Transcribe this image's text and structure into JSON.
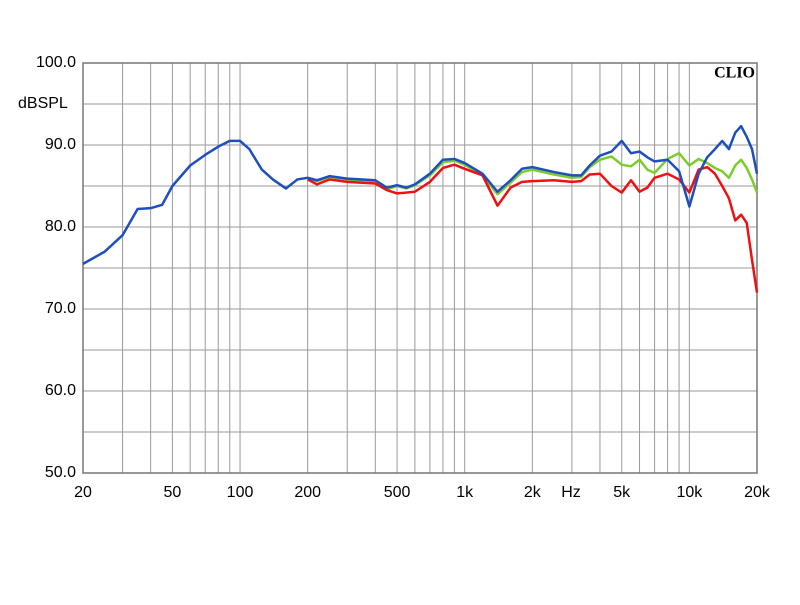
{
  "chart_data": {
    "type": "line",
    "x_scale": "log",
    "y_label": "dBSPL",
    "x_label": "Hz",
    "annotation": "CLIO",
    "x": [
      20,
      25,
      30,
      35,
      40,
      45,
      50,
      60,
      70,
      80,
      90,
      100,
      110,
      125,
      140,
      160,
      180,
      200,
      220,
      250,
      300,
      400,
      450,
      500,
      550,
      600,
      700,
      800,
      900,
      1000,
      1200,
      1400,
      1600,
      1800,
      2000,
      2500,
      3000,
      3300,
      3600,
      4000,
      4500,
      5000,
      5500,
      6000,
      6500,
      7000,
      8000,
      9000,
      10000,
      11000,
      12000,
      13000,
      14000,
      15000,
      16000,
      17000,
      18000,
      19000,
      20000
    ],
    "series": [
      {
        "color": "#1f4fbf",
        "values": [
          75.5,
          77,
          79,
          82.2,
          82.3,
          82.7,
          85,
          87.5,
          88.8,
          89.8,
          90.5,
          90.5,
          89.5,
          87,
          85.8,
          84.7,
          85.8,
          86,
          85.7,
          86.2,
          85.9,
          85.7,
          84.8,
          85.1,
          84.8,
          85.2,
          86.5,
          88.2,
          88.3,
          87.8,
          86.5,
          84.3,
          85.7,
          87.1,
          87.3,
          86.7,
          86.3,
          86.3,
          87.5,
          88.7,
          89.2,
          90.5,
          89,
          89.2,
          88.5,
          88,
          88.2,
          86.8,
          82.5,
          86.5,
          88.5,
          89.5,
          90.5,
          89.5,
          91.5,
          92.3,
          91,
          89.5,
          86.5
        ]
      },
      {
        "color": "#7ccc2e",
        "values": [
          null,
          null,
          null,
          null,
          null,
          null,
          null,
          null,
          null,
          null,
          null,
          null,
          null,
          null,
          null,
          null,
          null,
          86,
          85.6,
          86.1,
          85.8,
          85.6,
          84.6,
          85,
          84.7,
          85.1,
          86.3,
          87.9,
          88.1,
          87.6,
          86.3,
          84,
          85.4,
          86.7,
          87,
          86.4,
          86,
          86.1,
          87.3,
          88.2,
          88.6,
          87.6,
          87.4,
          88.2,
          87,
          86.6,
          88.3,
          89,
          87.5,
          88.3,
          87.8,
          87.2,
          86.8,
          86,
          87.5,
          88.2,
          87.2,
          85.8,
          84.2
        ]
      },
      {
        "color": "#ee1111",
        "values": [
          null,
          null,
          null,
          null,
          null,
          null,
          null,
          null,
          null,
          null,
          null,
          null,
          null,
          null,
          null,
          null,
          null,
          85.8,
          85.2,
          85.8,
          85.5,
          85.3,
          84.5,
          84.1,
          84.2,
          84.3,
          85.5,
          87.2,
          87.6,
          87.1,
          86.3,
          82.6,
          84.8,
          85.5,
          85.6,
          85.7,
          85.5,
          85.6,
          86.4,
          86.5,
          85,
          84.2,
          85.7,
          84.3,
          84.8,
          86,
          86.5,
          85.8,
          84.2,
          87,
          87.3,
          86.5,
          85,
          83.5,
          80.8,
          81.5,
          80.5,
          76,
          72
        ]
      }
    ],
    "xlim": [
      20,
      20000
    ],
    "xticks": [
      20,
      50,
      100,
      200,
      500,
      {
        "value": 1000,
        "label": "1k"
      },
      {
        "value": 2000,
        "label": "2k"
      },
      {
        "value": 5000,
        "label": "5k"
      },
      {
        "value": 10000,
        "label": "10k"
      },
      {
        "value": 20000,
        "label": "20k"
      }
    ],
    "xgrid": [
      30,
      40,
      50,
      60,
      70,
      80,
      90,
      100,
      200,
      300,
      400,
      500,
      600,
      700,
      800,
      900,
      1000,
      2000,
      3000,
      4000,
      5000,
      6000,
      7000,
      8000,
      9000,
      10000
    ],
    "ylim": [
      50,
      100
    ],
    "yticks": [
      {
        "value": 50,
        "label": "50.0"
      },
      {
        "value": 60,
        "label": "60.0"
      },
      {
        "value": 70,
        "label": "70.0"
      },
      {
        "value": 80,
        "label": "80.0"
      },
      {
        "value": 90,
        "label": "90.0"
      },
      {
        "value": 100,
        "label": "100.0"
      }
    ],
    "yminor": [
      55,
      65,
      75,
      85,
      95
    ],
    "grid": true
  }
}
